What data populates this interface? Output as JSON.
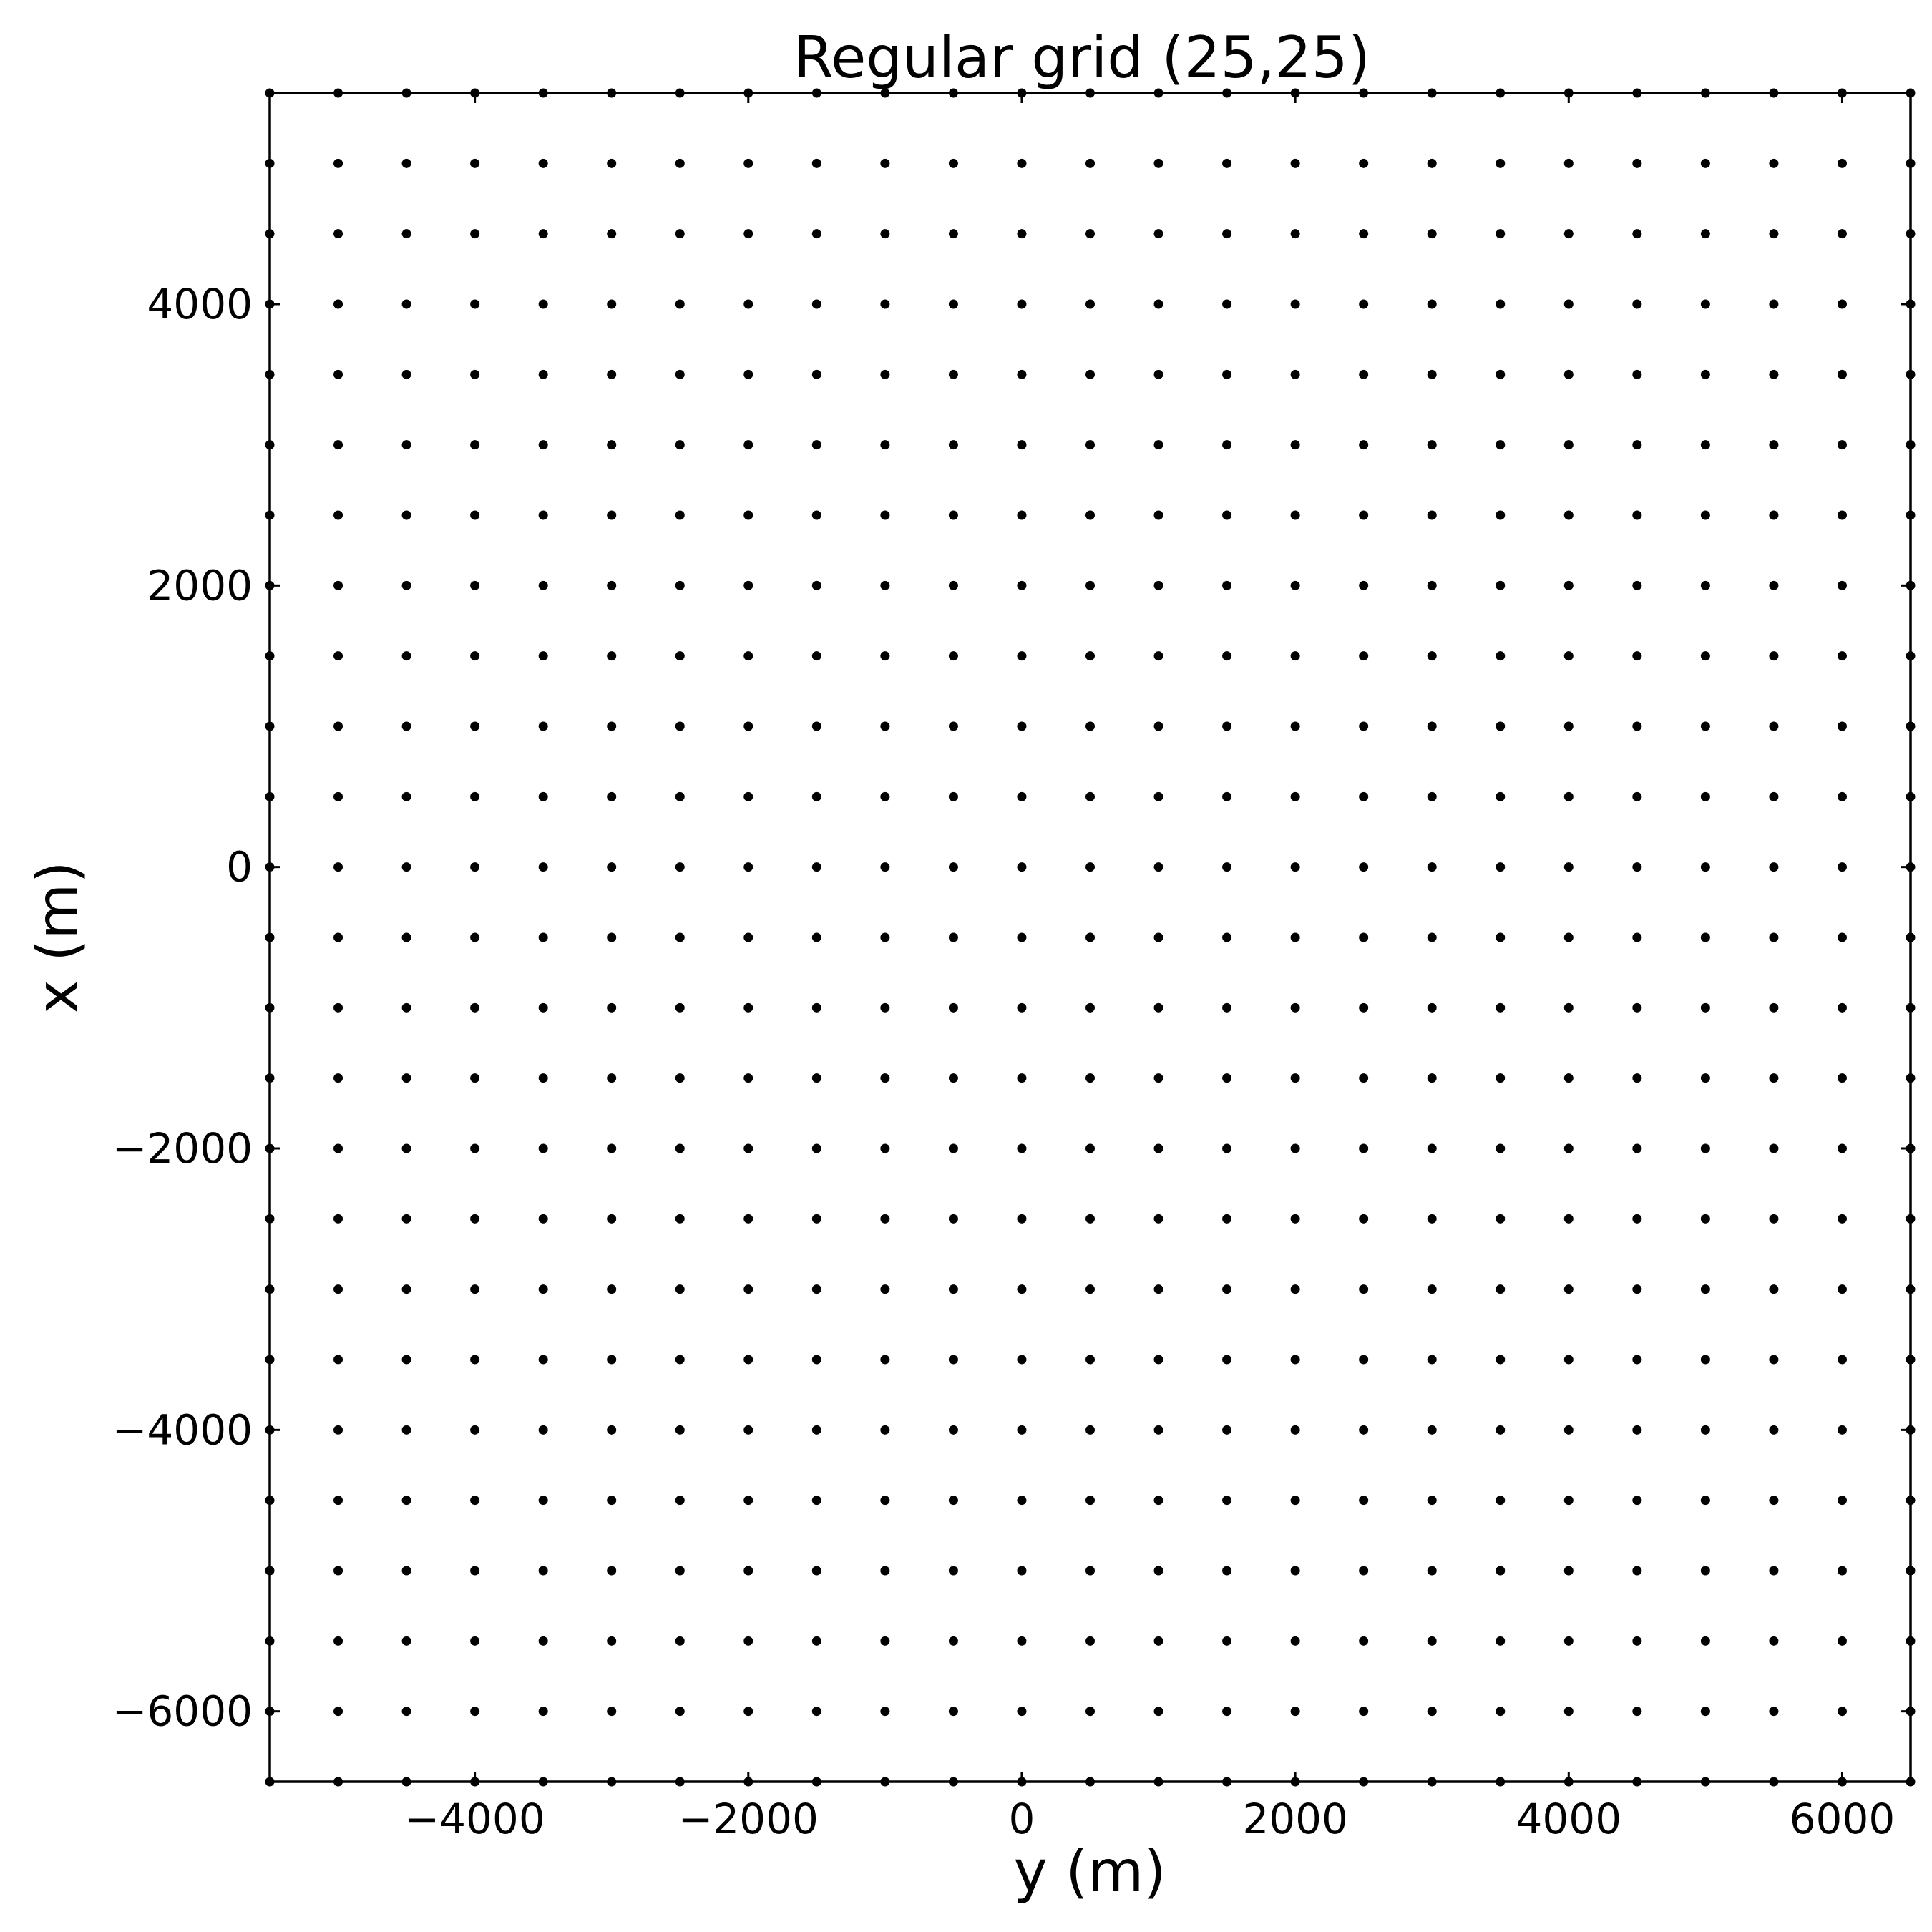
{
  "chart_data": {
    "type": "scatter",
    "title": "Regular grid (25,25)",
    "xlabel": "y (m)",
    "ylabel": "x (m)",
    "xlim": [
      -5500,
      6500
    ],
    "ylim": [
      -6500,
      5500
    ],
    "grid": false,
    "marker_color": "#000000",
    "series": [
      {
        "x": [
          -5500,
          -5000,
          -4500,
          -4000,
          -3500,
          -3000,
          -2500,
          -2000,
          -1500,
          -1000,
          -500,
          0,
          500,
          1000,
          1500,
          2000,
          2500,
          3000,
          3500,
          4000,
          4500,
          5000,
          5500,
          6000,
          6500
        ],
        "y": [
          -6500,
          -6000,
          -5500,
          -5000,
          -4500,
          -4000,
          -3500,
          -3000,
          -2500,
          -2000,
          -1500,
          -1000,
          -500,
          0,
          500,
          1000,
          1500,
          2000,
          2500,
          3000,
          3500,
          4000,
          4500,
          5000,
          5500
        ]
      }
    ],
    "x_ticks": [
      {
        "value": -4000,
        "label": "−4000"
      },
      {
        "value": -2000,
        "label": "−2000"
      },
      {
        "value": 0,
        "label": "0"
      },
      {
        "value": 2000,
        "label": "2000"
      },
      {
        "value": 4000,
        "label": "4000"
      },
      {
        "value": 6000,
        "label": "6000"
      }
    ],
    "y_ticks": [
      {
        "value": -6000,
        "label": "−6000"
      },
      {
        "value": -4000,
        "label": "−4000"
      },
      {
        "value": -2000,
        "label": "−2000"
      },
      {
        "value": 0,
        "label": "0"
      },
      {
        "value": 2000,
        "label": "2000"
      },
      {
        "value": 4000,
        "label": "4000"
      }
    ]
  }
}
